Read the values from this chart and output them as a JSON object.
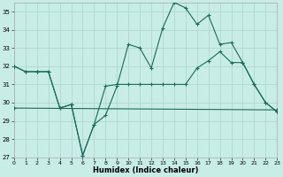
{
  "xlabel": "Humidex (Indice chaleur)",
  "background_color": "#c8ece6",
  "grid_color": "#b0d8d0",
  "line_color": "#1a6b5a",
  "xlim": [
    0,
    23
  ],
  "ylim": [
    27,
    35.5
  ],
  "yticks": [
    27,
    28,
    29,
    30,
    31,
    32,
    33,
    34,
    35
  ],
  "xticks": [
    0,
    1,
    2,
    3,
    4,
    5,
    6,
    7,
    8,
    9,
    10,
    11,
    12,
    13,
    14,
    15,
    16,
    17,
    18,
    19,
    20,
    21,
    22,
    23
  ],
  "line1_y": [
    32.0,
    31.7,
    31.7,
    31.7,
    29.7,
    29.9,
    27.1,
    28.8,
    29.3,
    30.9,
    33.2,
    33.0,
    31.9,
    34.1,
    35.5,
    35.2,
    34.3,
    34.8,
    33.2,
    33.3,
    32.2,
    31.0,
    30.0,
    29.5
  ],
  "line2_y": [
    32.0,
    31.7,
    31.7,
    31.7,
    29.7,
    29.9,
    27.1,
    28.8,
    30.9,
    31.0,
    31.0,
    31.0,
    31.0,
    31.0,
    31.0,
    31.0,
    31.9,
    32.3,
    32.8,
    32.2,
    32.2,
    31.0,
    30.0,
    29.5
  ],
  "line3_x": [
    0,
    23
  ],
  "line3_y": [
    29.7,
    29.6
  ]
}
